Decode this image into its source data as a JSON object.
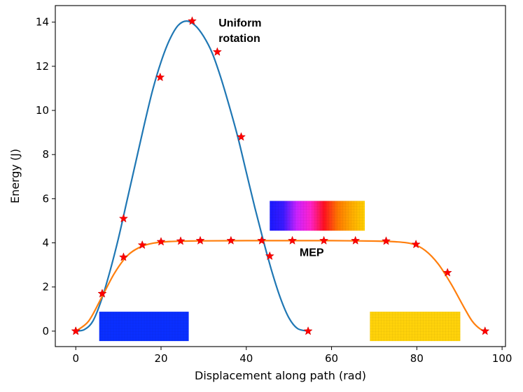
{
  "chart_data": {
    "type": "line",
    "title": "",
    "xlabel": "Displacement along path (rad)",
    "ylabel": "Energy (J)",
    "xlim": [
      -4.8,
      100.8
    ],
    "ylim": [
      -0.7,
      14.75
    ],
    "xticks": [
      0,
      20,
      40,
      60,
      80,
      100
    ],
    "yticks": [
      0,
      2,
      4,
      6,
      8,
      10,
      12,
      14
    ],
    "grid": false,
    "series": [
      {
        "name": "Uniform rotation",
        "color": "#1f77b4",
        "curve": [
          [
            0,
            0
          ],
          [
            2,
            0.07
          ],
          [
            4,
            0.45
          ],
          [
            6,
            1.4
          ],
          [
            8,
            2.7
          ],
          [
            10,
            4.2
          ],
          [
            12,
            5.9
          ],
          [
            14,
            7.6
          ],
          [
            16,
            9.3
          ],
          [
            18,
            10.9
          ],
          [
            20,
            12.2
          ],
          [
            22,
            13.2
          ],
          [
            24,
            13.85
          ],
          [
            26,
            14.05
          ],
          [
            28,
            13.85
          ],
          [
            30,
            13.35
          ],
          [
            32,
            12.6
          ],
          [
            34,
            11.5
          ],
          [
            36,
            10.2
          ],
          [
            38,
            8.8
          ],
          [
            40,
            7.2
          ],
          [
            42,
            5.6
          ],
          [
            44,
            4.1
          ],
          [
            46,
            2.7
          ],
          [
            48,
            1.5
          ],
          [
            50,
            0.6
          ],
          [
            52,
            0.12
          ],
          [
            54.5,
            0
          ]
        ],
        "markers": [
          [
            0,
            0
          ],
          [
            6.2,
            1.7
          ],
          [
            11.2,
            5.1
          ],
          [
            19.8,
            11.5
          ],
          [
            27.3,
            14.05
          ],
          [
            33.2,
            12.65
          ],
          [
            38.8,
            8.8
          ],
          [
            45.5,
            3.4
          ],
          [
            54.5,
            0
          ]
        ]
      },
      {
        "name": "MEP",
        "color": "#ff7f0e",
        "curve": [
          [
            0,
            0
          ],
          [
            3,
            0.45
          ],
          [
            6,
            1.5
          ],
          [
            9,
            2.6
          ],
          [
            12,
            3.4
          ],
          [
            15,
            3.8
          ],
          [
            18,
            3.98
          ],
          [
            22,
            4.06
          ],
          [
            26,
            4.08
          ],
          [
            30,
            4.09
          ],
          [
            40,
            4.1
          ],
          [
            50,
            4.1
          ],
          [
            60,
            4.1
          ],
          [
            70,
            4.08
          ],
          [
            75,
            4.05
          ],
          [
            79,
            3.95
          ],
          [
            82,
            3.65
          ],
          [
            85,
            3.05
          ],
          [
            88,
            2.15
          ],
          [
            91,
            1.1
          ],
          [
            93,
            0.45
          ],
          [
            95,
            0.08
          ],
          [
            96.5,
            0
          ]
        ],
        "markers": [
          [
            0,
            0
          ],
          [
            6.2,
            1.7
          ],
          [
            11.2,
            3.35
          ],
          [
            15.6,
            3.9
          ],
          [
            20,
            4.05
          ],
          [
            24.6,
            4.08
          ],
          [
            29.2,
            4.1
          ],
          [
            36.4,
            4.1
          ],
          [
            43.6,
            4.1
          ],
          [
            50.8,
            4.1
          ],
          [
            58.2,
            4.1
          ],
          [
            65.6,
            4.1
          ],
          [
            72.8,
            4.08
          ],
          [
            79.8,
            3.93
          ],
          [
            87.2,
            2.65
          ],
          [
            96,
            0
          ]
        ]
      }
    ],
    "annotations": [
      {
        "text": "Uniform",
        "x": 33.5,
        "y": 13.8
      },
      {
        "text": "rotation",
        "x": 33.5,
        "y": 13.1
      },
      {
        "text": "MEP",
        "x": 52.5,
        "y": 3.4
      }
    ],
    "insets": [
      {
        "name": "initial-state-inset",
        "x0": 5.5,
        "x1": 26.5,
        "y0": -0.45,
        "y1": 0.88,
        "stops": [
          "#0a2fff",
          "#0a2fff"
        ]
      },
      {
        "name": "transition-state-inset",
        "x0": 45.5,
        "x1": 67.8,
        "y0": 4.55,
        "y1": 5.9,
        "stops": [
          "#1a1aff",
          "#3a1aff",
          "#cc22ff",
          "#ff22cc",
          "#ff1020",
          "#ff7700",
          "#ffaa00",
          "#ffd000"
        ]
      },
      {
        "name": "final-state-inset",
        "x0": 69,
        "x1": 90.2,
        "y0": -0.45,
        "y1": 0.88,
        "stops": [
          "#ffd20a",
          "#ffd20a"
        ]
      }
    ]
  }
}
